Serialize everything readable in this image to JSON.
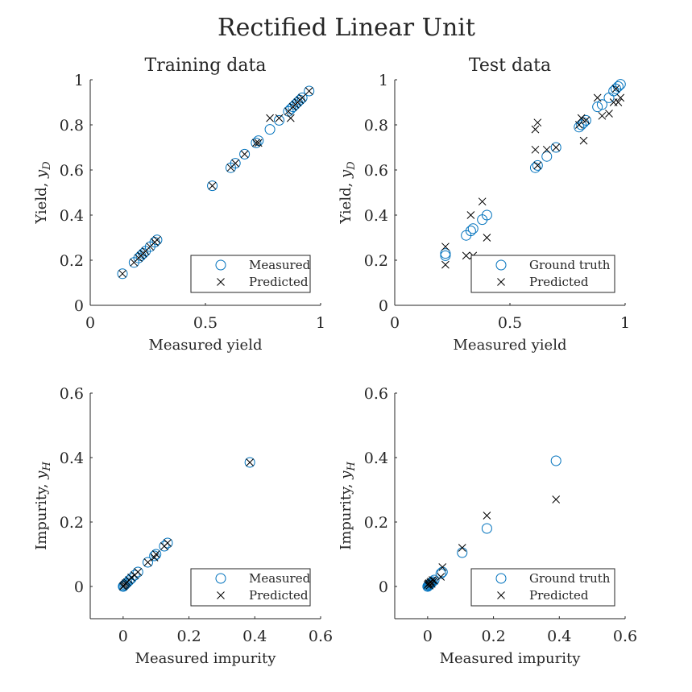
{
  "figure": {
    "title": "Rectified Linear Unit"
  },
  "chart_data": [
    {
      "type": "scatter",
      "title": "Training data",
      "xlabel": "Measured yield",
      "ylabel_main": "Yield, ",
      "ylabel_var": "y",
      "ylabel_sub": "D",
      "xlim": [
        0,
        1
      ],
      "ylim": [
        0,
        1
      ],
      "xticks": [
        0,
        0.5,
        1
      ],
      "xtick_labels": [
        "0",
        "0.5",
        "1"
      ],
      "yticks": [
        0,
        0.2,
        0.4,
        0.6,
        0.8,
        1
      ],
      "ytick_labels": [
        "0",
        "0.2",
        "0.4",
        "0.6",
        "0.8",
        "1"
      ],
      "legend": {
        "location": "bottom-right",
        "entries": [
          "Measured",
          "Predicted"
        ]
      },
      "series": [
        {
          "name": "Measured",
          "marker": "circle",
          "color": "#0072BD",
          "x": [
            0.14,
            0.19,
            0.21,
            0.22,
            0.23,
            0.24,
            0.26,
            0.28,
            0.29,
            0.53,
            0.61,
            0.63,
            0.67,
            0.72,
            0.73,
            0.78,
            0.82,
            0.86,
            0.87,
            0.88,
            0.89,
            0.9,
            0.91,
            0.92,
            0.95
          ],
          "y": [
            0.14,
            0.19,
            0.21,
            0.22,
            0.23,
            0.24,
            0.26,
            0.28,
            0.29,
            0.53,
            0.61,
            0.63,
            0.67,
            0.72,
            0.73,
            0.78,
            0.82,
            0.86,
            0.87,
            0.88,
            0.89,
            0.9,
            0.91,
            0.92,
            0.95
          ]
        },
        {
          "name": "Predicted",
          "marker": "cross",
          "color": "#000000",
          "x": [
            0.14,
            0.19,
            0.21,
            0.22,
            0.23,
            0.24,
            0.26,
            0.28,
            0.29,
            0.53,
            0.61,
            0.63,
            0.67,
            0.72,
            0.73,
            0.78,
            0.82,
            0.86,
            0.87,
            0.88,
            0.89,
            0.9,
            0.91,
            0.92,
            0.95
          ],
          "y": [
            0.14,
            0.19,
            0.21,
            0.22,
            0.23,
            0.24,
            0.26,
            0.28,
            0.29,
            0.53,
            0.61,
            0.63,
            0.67,
            0.72,
            0.72,
            0.83,
            0.83,
            0.86,
            0.83,
            0.88,
            0.89,
            0.9,
            0.91,
            0.92,
            0.95
          ]
        }
      ]
    },
    {
      "type": "scatter",
      "title": "Test data",
      "xlabel": "Measured yield",
      "ylabel_main": "Yield, ",
      "ylabel_var": "y",
      "ylabel_sub": "D",
      "xlim": [
        0,
        1
      ],
      "ylim": [
        0,
        1
      ],
      "xticks": [
        0,
        0.5,
        1
      ],
      "xtick_labels": [
        "0",
        "0.5",
        "1"
      ],
      "yticks": [
        0,
        0.2,
        0.4,
        0.6,
        0.8,
        1
      ],
      "ytick_labels": [
        "0",
        "0.2",
        "0.4",
        "0.6",
        "0.8",
        "1"
      ],
      "legend": {
        "location": "bottom-right",
        "entries": [
          "Ground truth",
          "Predicted"
        ]
      },
      "series": [
        {
          "name": "Ground truth",
          "marker": "circle",
          "color": "#0072BD",
          "x": [
            0.22,
            0.22,
            0.31,
            0.33,
            0.34,
            0.38,
            0.4,
            0.61,
            0.62,
            0.66,
            0.7,
            0.8,
            0.81,
            0.82,
            0.83,
            0.88,
            0.9,
            0.93,
            0.95,
            0.96,
            0.97,
            0.98
          ],
          "y": [
            0.22,
            0.23,
            0.31,
            0.33,
            0.34,
            0.38,
            0.4,
            0.61,
            0.62,
            0.66,
            0.7,
            0.79,
            0.8,
            0.81,
            0.82,
            0.88,
            0.89,
            0.92,
            0.95,
            0.96,
            0.97,
            0.98
          ]
        },
        {
          "name": "Predicted",
          "marker": "cross",
          "color": "#000000",
          "x": [
            0.22,
            0.22,
            0.31,
            0.33,
            0.34,
            0.38,
            0.4,
            0.61,
            0.61,
            0.62,
            0.62,
            0.66,
            0.7,
            0.8,
            0.81,
            0.82,
            0.83,
            0.88,
            0.9,
            0.93,
            0.95,
            0.96,
            0.97,
            0.98
          ],
          "y": [
            0.26,
            0.18,
            0.22,
            0.4,
            0.22,
            0.46,
            0.3,
            0.78,
            0.69,
            0.81,
            0.62,
            0.69,
            0.7,
            0.8,
            0.83,
            0.73,
            0.82,
            0.92,
            0.84,
            0.85,
            0.9,
            0.96,
            0.9,
            0.92
          ]
        }
      ]
    },
    {
      "type": "scatter",
      "title": "",
      "xlabel": "Measured impurity",
      "ylabel_main": "Impurity, ",
      "ylabel_var": "y",
      "ylabel_sub": "H",
      "xlim": [
        -0.1,
        0.6
      ],
      "ylim": [
        -0.1,
        0.6
      ],
      "xticks": [
        0,
        0.2,
        0.4,
        0.6
      ],
      "xtick_labels": [
        "0",
        "0.2",
        "0.4",
        "0.6"
      ],
      "yticks": [
        0,
        0.2,
        0.4,
        0.6
      ],
      "ytick_labels": [
        "0",
        "0.2",
        "0.4",
        "0.6"
      ],
      "legend": {
        "location": "bottom-right",
        "entries": [
          "Measured",
          "Predicted"
        ]
      },
      "series": [
        {
          "name": "Measured",
          "marker": "circle",
          "color": "#0072BD",
          "x": [
            0.0,
            0.002,
            0.005,
            0.008,
            0.012,
            0.018,
            0.025,
            0.035,
            0.045,
            0.075,
            0.095,
            0.1,
            0.125,
            0.135,
            0.385
          ],
          "y": [
            0.0,
            0.002,
            0.005,
            0.008,
            0.012,
            0.018,
            0.025,
            0.035,
            0.045,
            0.075,
            0.095,
            0.1,
            0.125,
            0.135,
            0.385
          ]
        },
        {
          "name": "Predicted",
          "marker": "cross",
          "color": "#000000",
          "x": [
            0.0,
            0.002,
            0.005,
            0.008,
            0.012,
            0.018,
            0.025,
            0.035,
            0.045,
            0.075,
            0.095,
            0.1,
            0.125,
            0.135,
            0.385
          ],
          "y": [
            0.0,
            0.003,
            0.006,
            0.01,
            0.013,
            0.02,
            0.028,
            0.035,
            0.045,
            0.075,
            0.09,
            0.1,
            0.125,
            0.135,
            0.385
          ]
        }
      ]
    },
    {
      "type": "scatter",
      "title": "",
      "xlabel": "Measured impurity",
      "ylabel_main": "Impurity, ",
      "ylabel_var": "y",
      "ylabel_sub": "H",
      "xlim": [
        -0.1,
        0.6
      ],
      "ylim": [
        -0.1,
        0.6
      ],
      "xticks": [
        0,
        0.2,
        0.4,
        0.6
      ],
      "xtick_labels": [
        "0",
        "0.2",
        "0.4",
        "0.6"
      ],
      "yticks": [
        0,
        0.2,
        0.4,
        0.6
      ],
      "ytick_labels": [
        "0",
        "0.2",
        "0.4",
        "0.6"
      ],
      "legend": {
        "location": "bottom-right",
        "entries": [
          "Ground truth",
          "Predicted"
        ]
      },
      "series": [
        {
          "name": "Ground truth",
          "marker": "circle",
          "color": "#0072BD",
          "x": [
            0.0,
            0.002,
            0.004,
            0.006,
            0.008,
            0.01,
            0.012,
            0.015,
            0.02,
            0.04,
            0.045,
            0.105,
            0.18,
            0.39
          ],
          "y": [
            0.0,
            0.002,
            0.004,
            0.006,
            0.008,
            0.01,
            0.012,
            0.015,
            0.02,
            0.04,
            0.045,
            0.105,
            0.18,
            0.39
          ]
        },
        {
          "name": "Predicted",
          "marker": "cross",
          "color": "#000000",
          "x": [
            0.0,
            0.002,
            0.004,
            0.006,
            0.008,
            0.01,
            0.012,
            0.015,
            0.02,
            0.04,
            0.045,
            0.105,
            0.18,
            0.39
          ],
          "y": [
            0.005,
            0.008,
            0.01,
            0.003,
            0.012,
            0.015,
            0.008,
            0.02,
            0.018,
            0.03,
            0.06,
            0.12,
            0.22,
            0.27
          ]
        }
      ]
    }
  ]
}
